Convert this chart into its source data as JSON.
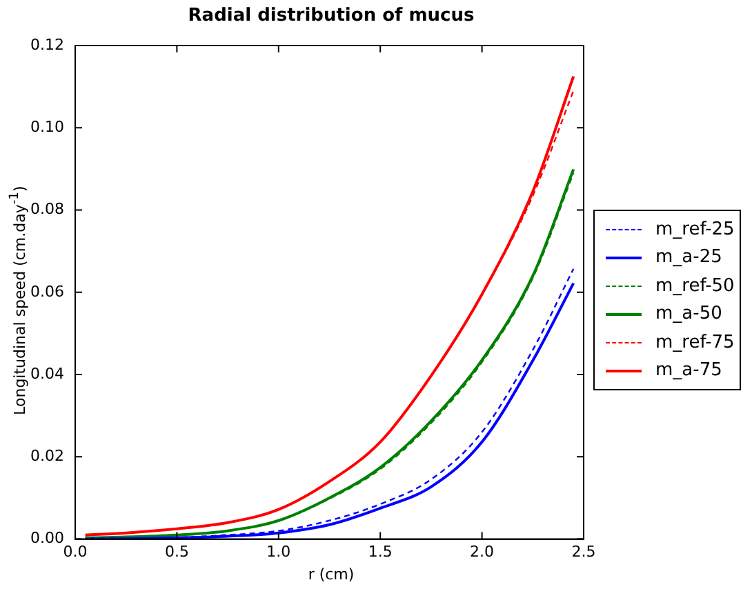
{
  "chart_data": {
    "type": "line",
    "title": "Radial distribution of mucus",
    "xlabel": "r (cm)",
    "ylabel": "Longitudinal speed (cm.day$^{-1}$)",
    "x": [
      0.05,
      0.25,
      0.5,
      0.75,
      1.0,
      1.25,
      1.5,
      1.75,
      2.0,
      2.25,
      2.45
    ],
    "xlim": [
      0,
      2.5
    ],
    "xticks": [
      {
        "value": 0,
        "label": "0.0"
      },
      0.5,
      {
        "value": 1,
        "label": "1.0"
      },
      1.5,
      {
        "value": 2,
        "label": "2.0"
      },
      2.5
    ],
    "ylim": [
      0,
      0.12
    ],
    "yticks": [
      {
        "value": 0,
        "label": "0.00"
      },
      0.02,
      0.04,
      0.06,
      0.08,
      {
        "value": 0.1,
        "label": "0.10"
      },
      0.12
    ],
    "grid": false,
    "legend": "right",
    "marker": "none",
    "series": [
      {
        "name": "m_ref-25",
        "color": "#0000ff",
        "line_style": "dashed",
        "values": [
          0.0001,
          0.0002,
          0.0004,
          0.001,
          0.002,
          0.0045,
          0.0085,
          0.0145,
          0.026,
          0.046,
          0.0657
        ]
      },
      {
        "name": "m_a-25",
        "color": "#0000ff",
        "line_style": "solid",
        "values": [
          0.0001,
          0.0001,
          0.0003,
          0.0007,
          0.0015,
          0.0035,
          0.0075,
          0.0127,
          0.0236,
          0.0434,
          0.0622
        ]
      },
      {
        "name": "m_ref-50",
        "color": "#008000",
        "line_style": "dashed",
        "values": [
          0.0003,
          0.0005,
          0.001,
          0.002,
          0.0045,
          0.0098,
          0.017,
          0.0282,
          0.043,
          0.0635,
          0.089
        ]
      },
      {
        "name": "m_a-50",
        "color": "#008000",
        "line_style": "solid",
        "values": [
          0.0003,
          0.0005,
          0.001,
          0.002,
          0.0045,
          0.01,
          0.0174,
          0.0287,
          0.0435,
          0.064,
          0.0899
        ]
      },
      {
        "name": "m_ref-75",
        "color": "#ff0000",
        "line_style": "dashed",
        "values": [
          0.001,
          0.0015,
          0.0025,
          0.004,
          0.0072,
          0.014,
          0.0236,
          0.0397,
          0.0595,
          0.0835,
          0.109
        ]
      },
      {
        "name": "m_a-75",
        "color": "#ff0000",
        "line_style": "solid",
        "values": [
          0.001,
          0.0015,
          0.0025,
          0.004,
          0.0072,
          0.014,
          0.0236,
          0.0397,
          0.0595,
          0.0845,
          0.1125
        ]
      }
    ]
  }
}
